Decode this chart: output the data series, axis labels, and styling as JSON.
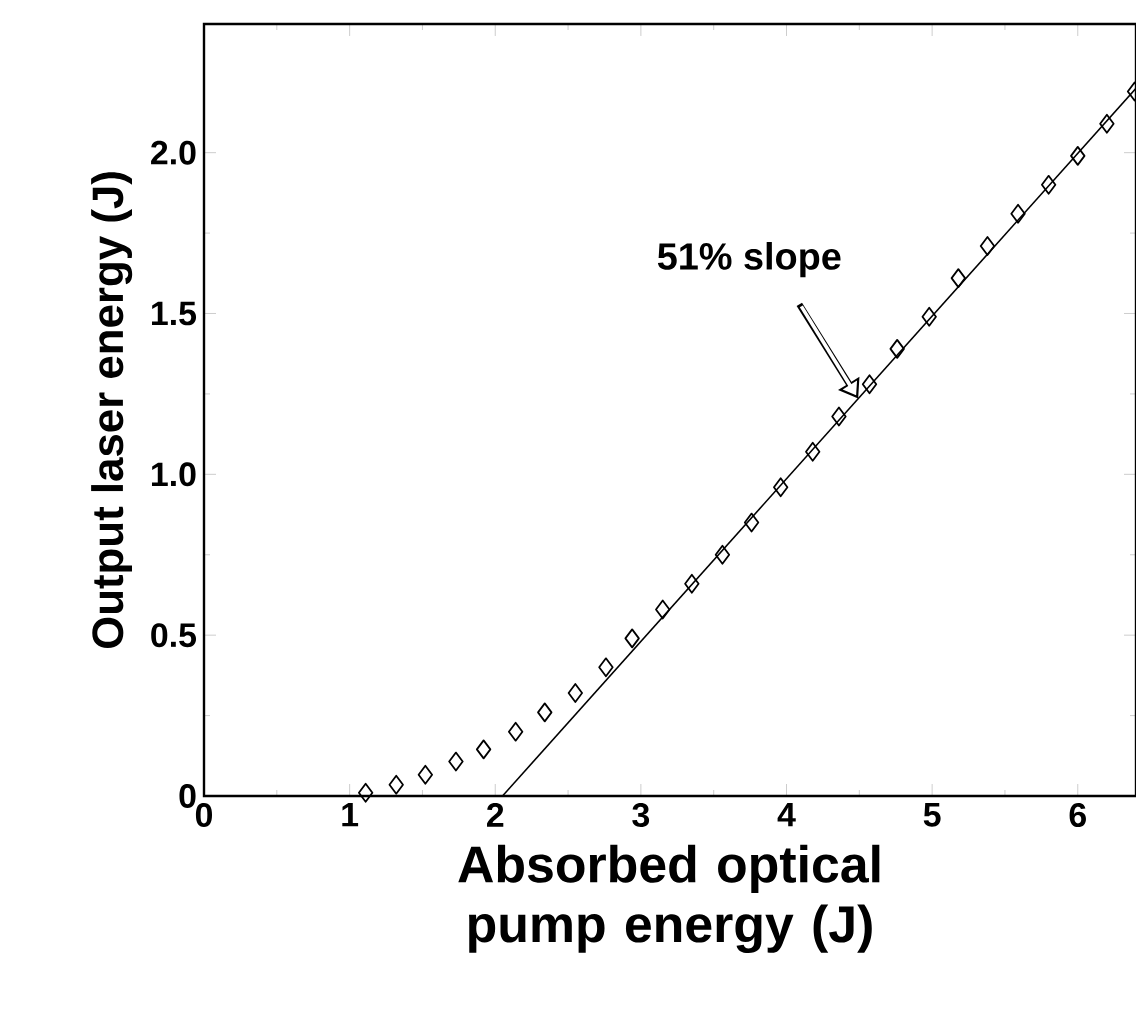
{
  "chart_data": {
    "type": "scatter",
    "xlabel": "Absorbed optical pump energy (J)",
    "ylabel": "Output laser energy (J)",
    "xlim": [
      0,
      6.4
    ],
    "ylim": [
      0,
      2.4
    ],
    "xticks": [
      0,
      1,
      2,
      3,
      4,
      5,
      6
    ],
    "yticks": [
      0,
      {
        "value": 0.5,
        "label": "0.5"
      },
      {
        "value": 1,
        "label": "1.0"
      },
      {
        "value": 1.5,
        "label": "1.5"
      },
      {
        "value": 2,
        "label": "2.0"
      }
    ],
    "marker": "diamond",
    "grid": false,
    "annotations": [
      {
        "text": "51% slope",
        "x": 4.5,
        "y": 1.23
      }
    ],
    "series": [
      {
        "color": "#000000",
        "x": [
          1.11,
          1.32,
          1.52,
          1.73,
          1.92,
          2.14,
          2.34,
          2.55,
          2.76,
          2.94,
          3.15,
          3.35,
          3.56,
          3.76,
          3.96,
          4.18,
          4.36,
          4.57,
          4.76,
          4.98,
          5.18,
          5.38,
          5.59,
          5.8,
          6.0,
          6.2,
          6.39
        ],
        "values": [
          0.01,
          0.035,
          0.066,
          0.107,
          0.145,
          0.2,
          0.26,
          0.32,
          0.4,
          0.49,
          0.58,
          0.66,
          0.75,
          0.85,
          0.96,
          1.07,
          1.18,
          1.28,
          1.39,
          1.49,
          1.61,
          1.71,
          1.81,
          1.9,
          1.99,
          2.09,
          2.19
        ]
      },
      {
        "type": "line",
        "color": "#000000",
        "marker": "none",
        "x": [
          2.05,
          6.4
        ],
        "values": [
          0,
          2.2
        ]
      }
    ]
  }
}
